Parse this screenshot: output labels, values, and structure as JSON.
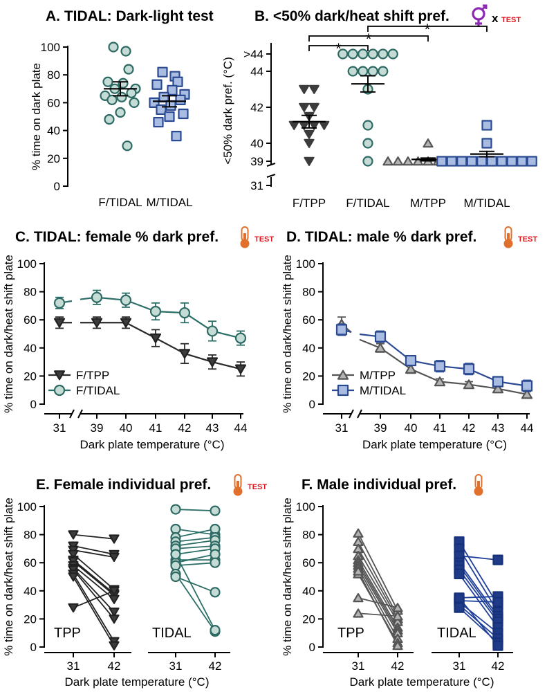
{
  "figure": {
    "colors": {
      "f_tpp": "#3c3c3c",
      "f_tidal": "#c5dbd6",
      "f_tidal_edge": "#2d6a63",
      "f_tidal_line": "#2a6e66",
      "m_tpp": "#b4b4b4",
      "m_tpp_edge": "#555555",
      "m_tidal": "#a9bde2",
      "m_tidal_edge": "#2b4a92",
      "m_tidal_dark": "#1f3a86",
      "thermo": "#e0702c",
      "test_red": "#e0141e",
      "venus": "#8c28b4"
    }
  },
  "panels": {
    "A": {
      "title": "A. TIDAL: Dark-light test"
    },
    "B": {
      "title": "B. <50% dark/heat shift pref.",
      "sig_star": "*",
      "interaction_x": "x",
      "test_label": "TEST"
    },
    "C": {
      "title": "C. TIDAL: female % dark pref.",
      "test_label": "TEST"
    },
    "D": {
      "title": "D. TIDAL: male % dark pref.",
      "test_label": "TEST"
    },
    "E": {
      "title": "E. Female individual pref.",
      "test_label": "TEST"
    },
    "F": {
      "title": "F. Male individual pref."
    }
  },
  "chart_data": [
    {
      "panel": "A",
      "type": "scatter",
      "title": "A. TIDAL: Dark-light test",
      "ylabel": "% time on dark plate",
      "ylim": [
        0,
        100
      ],
      "yticks": [
        0,
        20,
        40,
        60,
        80,
        100
      ],
      "categories": [
        "F/TIDAL",
        "M/TIDAL"
      ],
      "groups": [
        {
          "name": "F/TIDAL",
          "marker": "circle",
          "mean": 70,
          "sem": 5,
          "values": [
            100,
            97,
            84,
            75,
            74,
            70,
            70,
            67,
            65,
            64,
            62,
            60,
            53,
            48,
            29
          ]
        },
        {
          "name": "M/TIDAL",
          "marker": "square",
          "mean": 61,
          "sem": 4,
          "values": [
            82,
            79,
            75,
            73,
            69,
            66,
            64,
            62,
            60,
            58,
            55,
            52,
            50,
            46,
            36
          ]
        }
      ]
    },
    {
      "panel": "B",
      "type": "scatter",
      "title": "B. <50% dark/heat shift pref.",
      "ylabel": "<50% dark pref. (°C)",
      "ytick_labels": [
        "31",
        "39",
        "40",
        "42",
        "44",
        ">44"
      ],
      "ytick_values": [
        31,
        39,
        40,
        42,
        44,
        45
      ],
      "categories": [
        "F/TPP",
        "F/TIDAL",
        "M/TPP",
        "M/TIDAL"
      ],
      "groups": [
        {
          "name": "F/TPP",
          "marker": "triangle-down",
          "mean": 41.2,
          "sem": 0.35,
          "values": [
            43,
            43,
            42,
            42,
            41.5,
            41,
            41,
            41,
            41,
            40.5,
            40,
            39
          ]
        },
        {
          "name": "F/TIDAL",
          "marker": "circle",
          "mean": 43.3,
          "sem": 0.45,
          "values": [
            45,
            45,
            45,
            45,
            45,
            45,
            44,
            44,
            44,
            44,
            43,
            41,
            40,
            39
          ]
        },
        {
          "name": "M/TPP",
          "marker": "triangle-up",
          "mean": 39.1,
          "sem": 0.08,
          "values": [
            40,
            39,
            39,
            39,
            39,
            39,
            39,
            39,
            39,
            39
          ]
        },
        {
          "name": "M/TIDAL",
          "marker": "square",
          "mean": 39.4,
          "sem": 0.15,
          "values": [
            41,
            40,
            39,
            39,
            39,
            39,
            39,
            39,
            39,
            39,
            39,
            39
          ]
        }
      ],
      "significance": [
        {
          "between": [
            "F/TPP",
            "F/TIDAL"
          ],
          "label": "*"
        },
        {
          "between": [
            "F/TPP",
            "M/TPP"
          ],
          "label": "*"
        },
        {
          "between": [
            "F/TIDAL",
            "M/TIDAL"
          ],
          "label": "*"
        }
      ]
    },
    {
      "panel": "C",
      "type": "line",
      "title": "C. TIDAL: female % dark pref.",
      "xlabel": "Dark plate temperature (°C)",
      "ylabel": "% time on dark/heat shift plate",
      "x": [
        31,
        39,
        40,
        41,
        42,
        43,
        44
      ],
      "ylim": [
        0,
        100
      ],
      "yticks": [
        0,
        20,
        40,
        60,
        80,
        100
      ],
      "legend": "bottom-left",
      "series": [
        {
          "name": "F/TPP",
          "marker": "triangle-down",
          "values": [
            58,
            58,
            58,
            47,
            36,
            30,
            25
          ],
          "errors": [
            4,
            4,
            4,
            6,
            7,
            5,
            5
          ]
        },
        {
          "name": "F/TIDAL",
          "marker": "circle",
          "values": [
            72,
            76,
            74,
            66,
            65,
            52,
            47
          ],
          "errors": [
            4,
            5,
            5,
            6,
            7,
            7,
            5
          ]
        }
      ]
    },
    {
      "panel": "D",
      "type": "line",
      "title": "D. TIDAL: male % dark pref.",
      "xlabel": "Dark plate temperature (°C)",
      "ylabel": "% time on dark/heat shift plate",
      "x": [
        31,
        39,
        40,
        41,
        42,
        43,
        44
      ],
      "ylim": [
        0,
        100
      ],
      "yticks": [
        0,
        20,
        40,
        60,
        80,
        100
      ],
      "legend": "bottom-left",
      "series": [
        {
          "name": "M/TPP",
          "marker": "triangle-up",
          "values": [
            57,
            40,
            25,
            16,
            14,
            11,
            7
          ],
          "errors": [
            5,
            3,
            3,
            2,
            2,
            2,
            2
          ]
        },
        {
          "name": "M/TIDAL",
          "marker": "square",
          "values": [
            53,
            48,
            31,
            27,
            25,
            16,
            13
          ],
          "errors": [
            4,
            4,
            3,
            4,
            4,
            3,
            4
          ]
        }
      ]
    },
    {
      "panel": "E",
      "type": "line",
      "title": "E. Female individual pref.",
      "xlabel": "Dark plate temperature (°C)",
      "ylabel": "% time on dark/heat shift plate",
      "x_labels": [
        "31",
        "42"
      ],
      "ylim": [
        0,
        100
      ],
      "yticks": [
        0,
        20,
        40,
        60,
        80,
        100
      ],
      "groups": [
        {
          "name": "TPP",
          "marker": "triangle-down",
          "pairs": [
            [
              80,
              77
            ],
            [
              72,
              66
            ],
            [
              69,
              64
            ],
            [
              66,
              41
            ],
            [
              62,
              38
            ],
            [
              61,
              37
            ],
            [
              58,
              34
            ],
            [
              56,
              25
            ],
            [
              55,
              20
            ],
            [
              52,
              4
            ],
            [
              50,
              1
            ],
            [
              28,
              40
            ]
          ]
        },
        {
          "name": "TIDAL",
          "marker": "circle",
          "pairs": [
            [
              98,
              97
            ],
            [
              84,
              80
            ],
            [
              78,
              84
            ],
            [
              75,
              78
            ],
            [
              72,
              76
            ],
            [
              70,
              72
            ],
            [
              66,
              70
            ],
            [
              62,
              62
            ],
            [
              60,
              66
            ],
            [
              58,
              60
            ],
            [
              52,
              11
            ],
            [
              50,
              39
            ],
            [
              66,
              12
            ]
          ]
        }
      ]
    },
    {
      "panel": "F",
      "type": "line",
      "title": "F. Male individual pref.",
      "xlabel": "Dark plate temperature (°C)",
      "ylabel": "% time on dark/heat shift plate",
      "x_labels": [
        "31",
        "42"
      ],
      "ylim": [
        0,
        100
      ],
      "yticks": [
        0,
        20,
        40,
        60,
        80,
        100
      ],
      "groups": [
        {
          "name": "TPP",
          "marker": "triangle-up",
          "pairs": [
            [
              81,
              26
            ],
            [
              75,
              22
            ],
            [
              70,
              20
            ],
            [
              65,
              18
            ],
            [
              62,
              14
            ],
            [
              60,
              12
            ],
            [
              58,
              10
            ],
            [
              56,
              6
            ],
            [
              52,
              3
            ],
            [
              35,
              28
            ],
            [
              24,
              22
            ],
            [
              54,
              1
            ]
          ]
        },
        {
          "name": "TIDAL",
          "marker": "square",
          "pairs": [
            [
              75,
              30
            ],
            [
              70,
              25
            ],
            [
              65,
              62
            ],
            [
              60,
              22
            ],
            [
              58,
              20
            ],
            [
              55,
              18
            ],
            [
              52,
              14
            ],
            [
              35,
              36
            ],
            [
              33,
              32
            ],
            [
              32,
              10
            ],
            [
              30,
              6
            ],
            [
              28,
              3
            ],
            [
              35,
              1
            ]
          ]
        }
      ]
    }
  ]
}
